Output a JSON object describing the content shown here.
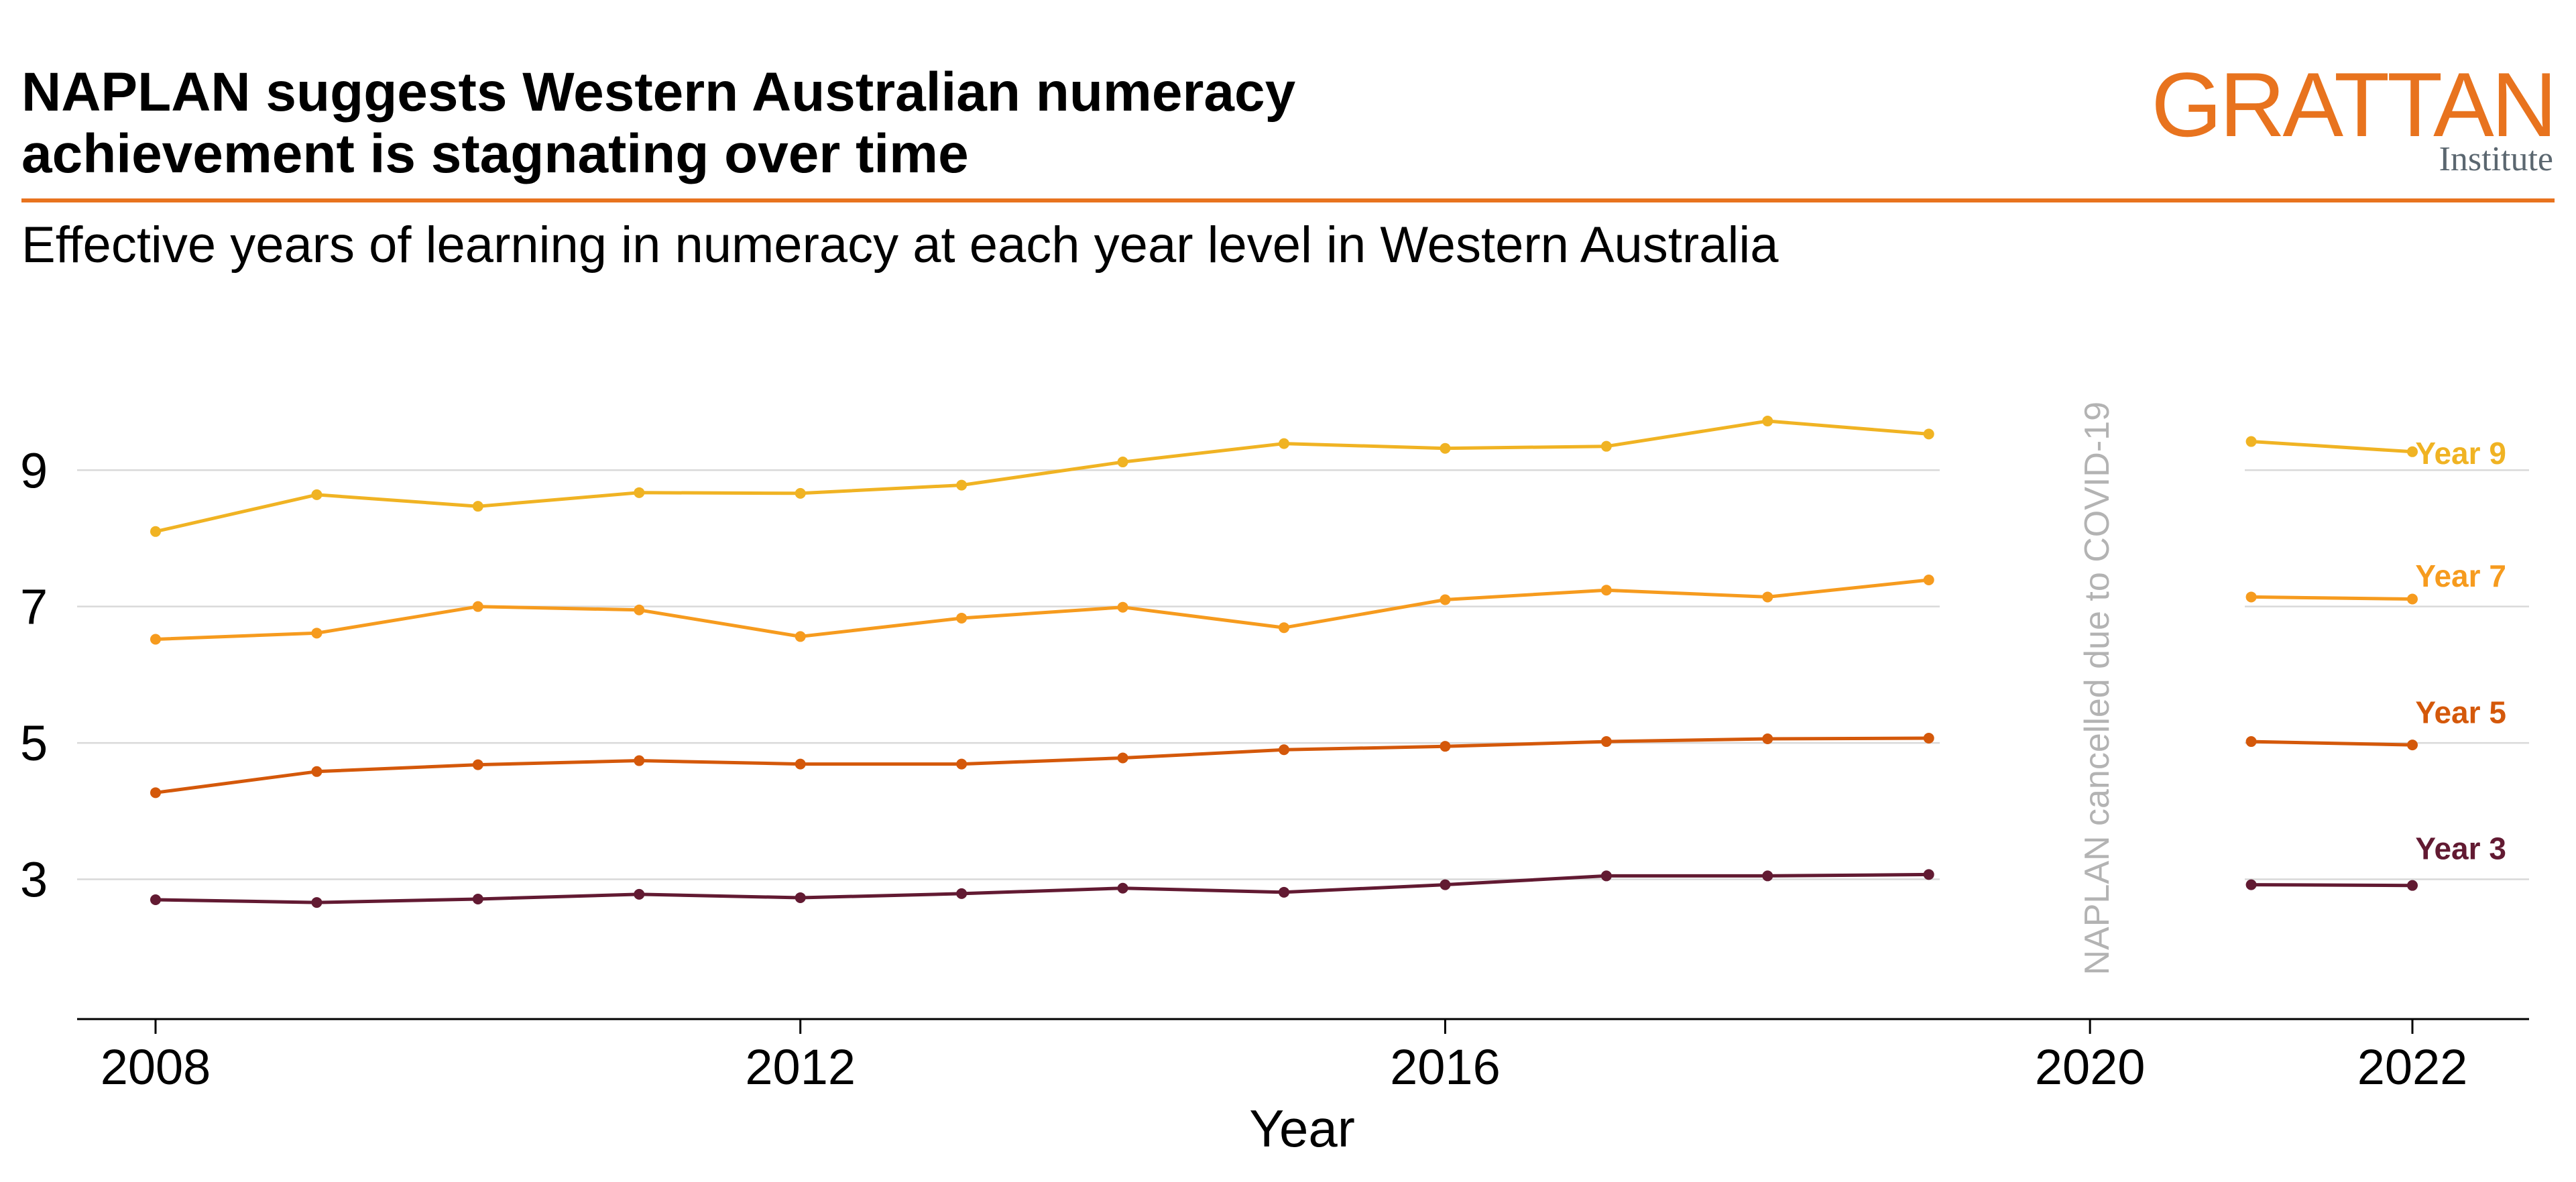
{
  "header": {
    "title_line1": "NAPLAN suggests Western Australian numeracy",
    "title_line2": "achievement is stagnating over time",
    "subtitle": "Effective years of learning in numeracy at each year level in Western Australia"
  },
  "logo": {
    "main": "GRATTAN",
    "sub": "Institute"
  },
  "colors": {
    "accent": "#e8731e",
    "grid": "#d9d9d9",
    "axis": "#000000",
    "annotation": "#b3b3b3"
  },
  "chart_data": {
    "type": "line",
    "xlabel": "Year",
    "ylabel": "",
    "xlim": [
      2007.5,
      2022.7
    ],
    "ylim": [
      0.95,
      11.5
    ],
    "x_ticks": [
      2008,
      2012,
      2016,
      2020,
      2022
    ],
    "y_ticks": [
      3,
      5,
      7,
      9
    ],
    "grid": "horizontal",
    "annotation": {
      "text": "NAPLAN cancelled due to COVID-19",
      "x": 2020,
      "y": 5.8,
      "rotation": -90
    },
    "series": [
      {
        "name": "Year 9",
        "color": "#f0b323",
        "segments": [
          {
            "x": [
              2008,
              2009,
              2010,
              2011,
              2012,
              2013,
              2014,
              2015,
              2016,
              2017,
              2018,
              2019
            ],
            "y": [
              8.1,
              8.64,
              8.47,
              8.67,
              8.66,
              8.78,
              9.12,
              9.39,
              9.32,
              9.35,
              9.72,
              9.53
            ]
          },
          {
            "x": [
              2021,
              2022
            ],
            "y": [
              9.42,
              9.27
            ]
          }
        ],
        "label_pos": [
          2022.3,
          9.25
        ]
      },
      {
        "name": "Year 7",
        "color": "#f69b1e",
        "segments": [
          {
            "x": [
              2008,
              2009,
              2010,
              2011,
              2012,
              2013,
              2014,
              2015,
              2016,
              2017,
              2018,
              2019
            ],
            "y": [
              6.52,
              6.61,
              7.0,
              6.95,
              6.56,
              6.83,
              6.99,
              6.69,
              7.1,
              7.24,
              7.14,
              7.39
            ]
          },
          {
            "x": [
              2021,
              2022
            ],
            "y": [
              7.14,
              7.11
            ]
          }
        ],
        "label_pos": [
          2022.3,
          7.45
        ]
      },
      {
        "name": "Year 5",
        "color": "#d4580a",
        "segments": [
          {
            "x": [
              2008,
              2009,
              2010,
              2011,
              2012,
              2013,
              2014,
              2015,
              2016,
              2017,
              2018,
              2019
            ],
            "y": [
              4.27,
              4.58,
              4.68,
              4.74,
              4.69,
              4.69,
              4.78,
              4.9,
              4.95,
              5.02,
              5.06,
              5.07
            ]
          },
          {
            "x": [
              2021,
              2022
            ],
            "y": [
              5.02,
              4.97
            ]
          }
        ],
        "label_pos": [
          2022.3,
          5.45
        ]
      },
      {
        "name": "Year 3",
        "color": "#621a32",
        "segments": [
          {
            "x": [
              2008,
              2009,
              2010,
              2011,
              2012,
              2013,
              2014,
              2015,
              2016,
              2017,
              2018,
              2019
            ],
            "y": [
              2.7,
              2.66,
              2.71,
              2.78,
              2.73,
              2.79,
              2.87,
              2.81,
              2.92,
              3.05,
              3.05,
              3.07
            ]
          },
          {
            "x": [
              2021,
              2022
            ],
            "y": [
              2.92,
              2.91
            ]
          }
        ],
        "label_pos": [
          2022.3,
          3.45
        ]
      }
    ]
  }
}
